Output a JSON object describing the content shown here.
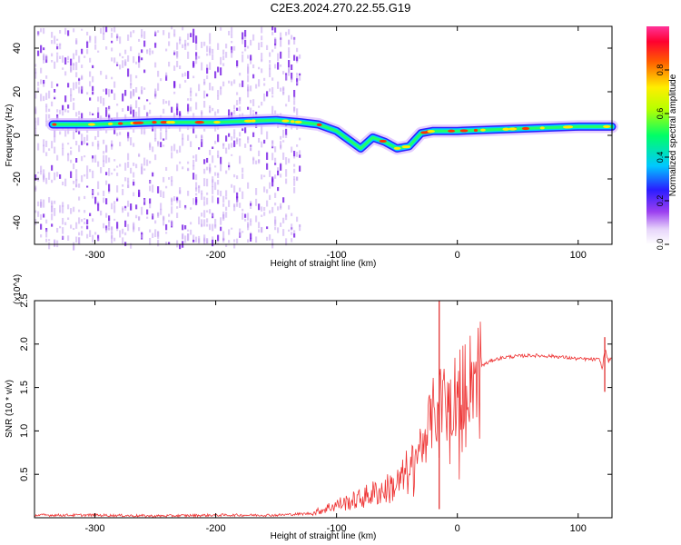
{
  "title": "C2E3.2024.270.22.55.G19",
  "chart_data": [
    {
      "type": "heatmap",
      "xlabel": "Height of straight line (km)",
      "ylabel": "Frequency (Hz)",
      "xlim": [
        -350,
        128
      ],
      "ylim": [
        -50,
        50
      ],
      "xticks": [
        -300,
        -200,
        -100,
        0,
        100
      ],
      "yticks": [
        -40,
        -20,
        0,
        20,
        40
      ],
      "colorbar": {
        "label": "Normalized spectral amplitude",
        "range": [
          0,
          1
        ],
        "ticks": [
          0.0,
          0.2,
          0.4,
          0.6,
          0.8
        ]
      },
      "main_tone": {
        "x": [
          -335,
          -300,
          -250,
          -200,
          -150,
          -130,
          -115,
          -100,
          -90,
          -80,
          -70,
          -60,
          -50,
          -40,
          -30,
          -20,
          0,
          50,
          100,
          128
        ],
        "y": [
          5,
          5,
          6,
          6,
          7,
          6,
          5,
          2,
          -2,
          -6,
          -1,
          -3,
          -6,
          -5,
          1,
          2,
          2,
          3,
          4,
          4
        ]
      },
      "noise_region_x": [
        -350,
        -130
      ]
    },
    {
      "type": "line",
      "xlabel": "Height of straight line (km)",
      "ylabel": "SNR (10 * v/v)",
      "y_multiplier": "(x10^4)",
      "xlim": [
        -350,
        128
      ],
      "ylim": [
        0,
        2.5
      ],
      "xticks": [
        -300,
        -200,
        -100,
        0,
        100
      ],
      "yticks": [
        0.5,
        1.0,
        1.5,
        2.0,
        2.5
      ],
      "series": [
        {
          "color": "#ee3333",
          "x": [
            -350,
            -300,
            -250,
            -200,
            -150,
            -120,
            -110,
            -100,
            -90,
            -80,
            -70,
            -60,
            -50,
            -45,
            -40,
            -35,
            -30,
            -25,
            -20,
            -15,
            -10,
            -5,
            0,
            5,
            10,
            20,
            30,
            40,
            60,
            80,
            100,
            118,
            120,
            122,
            125,
            128
          ],
          "y": [
            0.03,
            0.03,
            0.02,
            0.03,
            0.03,
            0.05,
            0.1,
            0.15,
            0.18,
            0.22,
            0.28,
            0.32,
            0.38,
            0.45,
            0.55,
            0.7,
            0.85,
            1.0,
            1.2,
            1.3,
            1.35,
            1.4,
            1.45,
            1.5,
            1.6,
            1.75,
            1.82,
            1.85,
            1.87,
            1.86,
            1.83,
            1.82,
            1.7,
            1.95,
            1.8,
            1.85
          ]
        }
      ]
    }
  ],
  "colors": {
    "line": "#ee3333",
    "spike": "#dd2222",
    "noise": "#c9a8f2",
    "noise_dark": "#7a22e6"
  }
}
